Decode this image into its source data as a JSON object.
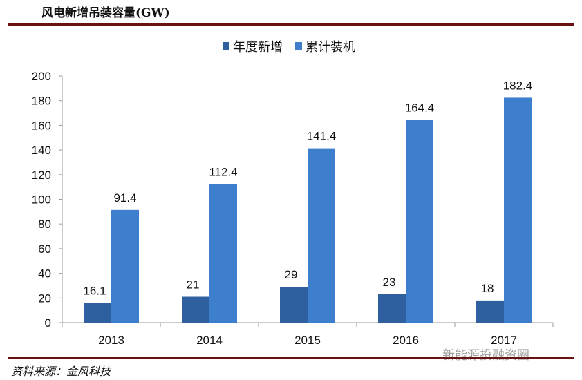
{
  "title": "风电新增吊装容量(GW)",
  "source": "资料来源：金风科技",
  "watermark": "新能源投融资圈",
  "chart_data": {
    "type": "bar",
    "categories": [
      "2013",
      "2014",
      "2015",
      "2016",
      "2017"
    ],
    "series": [
      {
        "name": "年度新增",
        "values": [
          16.1,
          21,
          29,
          23,
          18
        ],
        "labels": [
          "16.1",
          "21",
          "29",
          "23",
          "18"
        ],
        "color": "#2e5f9f"
      },
      {
        "name": "累计装机",
        "values": [
          91.4,
          112.4,
          141.4,
          164.4,
          182.4
        ],
        "labels": [
          "91.4",
          "112.4",
          "141.4",
          "164.4",
          "182.4"
        ],
        "color": "#3e7fcd"
      }
    ],
    "ylim": [
      0,
      200
    ],
    "yticks": [
      "0",
      "20",
      "40",
      "60",
      "80",
      "100",
      "120",
      "140",
      "160",
      "180",
      "200"
    ],
    "grid": false,
    "legend": "top-center"
  }
}
